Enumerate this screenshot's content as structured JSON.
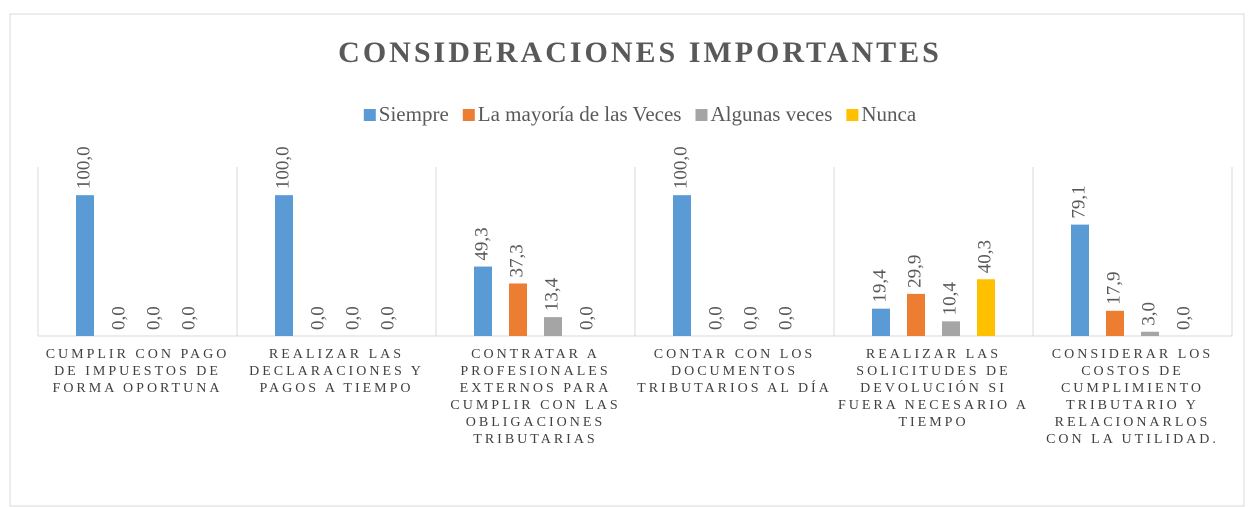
{
  "chart_data": {
    "type": "bar",
    "title": "CONSIDERACIONES IMPORTANTES",
    "categories": [
      "CUMPLIR CON PAGO DE IMPUESTOS DE FORMA OPORTUNA",
      "REALIZAR LAS DECLARACIONES Y PAGOS A TIEMPO",
      "CONTRATAR A PROFESIONALES EXTERNOS PARA CUMPLIR CON LAS OBLIGACIONES TRIBUTARIAS",
      "CONTAR CON LOS DOCUMENTOS TRIBUTARIOS AL DÍA",
      "REALIZAR LAS SOLICITUDES DE DEVOLUCIÓN SI FUERA NECESARIO A TIEMPO",
      "CONSIDERAR LOS COSTOS DE CUMPLIMIENTO TRIBUTARIO Y RELACIONARLOS CON LA UTILIDAD."
    ],
    "series": [
      {
        "name": "Siempre",
        "color": "#5b9bd5",
        "values": [
          100,
          100,
          49.3,
          100,
          19.4,
          79.1
        ],
        "value_labels": [
          "100,0",
          "100,0",
          "49,3",
          "100,0",
          "19,4",
          "79,1"
        ]
      },
      {
        "name": "La mayoría de las Veces",
        "color": "#ed7d31",
        "values": [
          0,
          0,
          37.3,
          0,
          29.9,
          17.9
        ],
        "value_labels": [
          "0,0",
          "0,0",
          "37,3",
          "0,0",
          "29,9",
          "17,9"
        ]
      },
      {
        "name": "Algunas veces",
        "color": "#a5a5a5",
        "values": [
          0,
          0,
          13.4,
          0,
          10.4,
          3.0
        ],
        "value_labels": [
          "0,0",
          "0,0",
          "13,4",
          "0,0",
          "10,4",
          "3,0"
        ]
      },
      {
        "name": "Nunca",
        "color": "#ffc000",
        "values": [
          0,
          0,
          0,
          0,
          40.3,
          0
        ],
        "value_labels": [
          "0,0",
          "0,0",
          "0,0",
          "0,0",
          "40,3",
          "0,0"
        ]
      }
    ],
    "ylim": [
      0,
      120
    ],
    "legend": "top"
  }
}
